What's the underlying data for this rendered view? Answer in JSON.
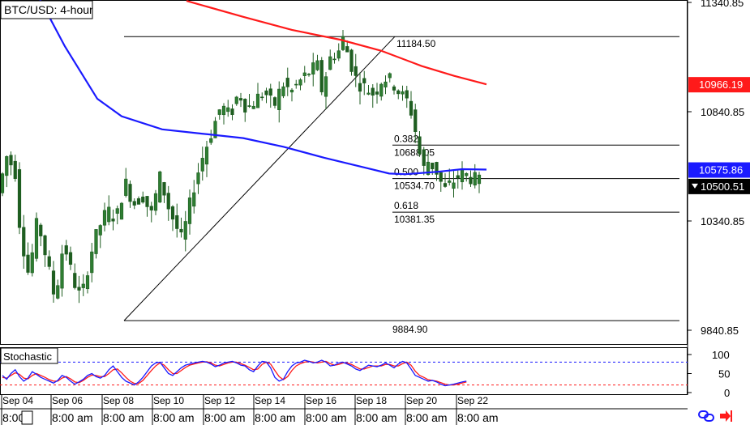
{
  "chart_title": "BTC/USD: 4-hour",
  "stochastic_label": "Stochastic",
  "colors": {
    "candle_up": "#2e7d32",
    "candle_down": "#1f5e21",
    "ma_fast": "#1a1aff",
    "ma_slow": "#ff1a1a",
    "fib": "#000000",
    "stoch_k": "#1a1aff",
    "stoch_d": "#ff1a1a",
    "axis_text": "#000000",
    "current_price_bg": "#000000"
  },
  "toolbar_icons": [
    "link-icon",
    "arrow-right-icon"
  ],
  "chart_data": {
    "type": "candlestick",
    "main_axis": {
      "ylim": [
        9780,
        11340.85
      ],
      "tick_labels": [
        "11340.85",
        "10840.85",
        "10340.85",
        "9840.85"
      ],
      "tick_values": [
        11340.85,
        10840.85,
        10340.85,
        9840.85
      ]
    },
    "price_tags": [
      {
        "label": "10966.19",
        "value": 10966.19,
        "color": "#ff1a1a",
        "kind": "ma_slow"
      },
      {
        "label": "10575.86",
        "value": 10575.86,
        "color": "#1a1aff",
        "kind": "ma_fast"
      },
      {
        "label": "10500.51",
        "value": 10500.51,
        "color": "#000000",
        "kind": "current"
      }
    ],
    "fibonacci": {
      "high": {
        "label": "11184.50",
        "value": 11184.5
      },
      "low": {
        "label": "9884.90",
        "value": 9884.9
      },
      "levels": [
        {
          "ratio": "0.382",
          "label": "10688.05",
          "value": 10688.05
        },
        {
          "ratio": "0.500",
          "label": "10534.70",
          "value": 10534.7
        },
        {
          "ratio": "0.618",
          "label": "10381.35",
          "value": 10381.35
        }
      ]
    },
    "x_date_labels": [
      "Sep 04",
      "Sep 06",
      "Sep 08",
      "Sep 10",
      "Sep 12",
      "Sep 14",
      "Sep 16",
      "Sep 18",
      "Sep 20",
      "Sep 22"
    ],
    "x_time_labels": [
      "8:00",
      "8:00 am",
      "8:00 am",
      "8:00 am",
      "8:00 am",
      "8:00 am",
      "8:00 am",
      "8:00 am",
      "8:00 am",
      "8:00 am"
    ],
    "stochastic": {
      "ylim": [
        0,
        100
      ],
      "tick_labels": [
        "100",
        "50",
        "0"
      ],
      "tick_values": [
        100,
        50,
        0
      ],
      "overbought": 80,
      "oversold": 20,
      "k": [
        45,
        35,
        50,
        60,
        42,
        30,
        38,
        55,
        48,
        40,
        35,
        30,
        25,
        32,
        45,
        40,
        30,
        22,
        28,
        35,
        45,
        50,
        42,
        38,
        45,
        60,
        70,
        55,
        40,
        30,
        25,
        20,
        28,
        40,
        55,
        70,
        78,
        80,
        65,
        50,
        45,
        55,
        65,
        72,
        75,
        78,
        80,
        82,
        80,
        75,
        68,
        72,
        78,
        80,
        82,
        78,
        72,
        70,
        60,
        55,
        70,
        82,
        80,
        65,
        40,
        30,
        35,
        55,
        70,
        78,
        80,
        85,
        82,
        78,
        80,
        85,
        80,
        70,
        72,
        78,
        80,
        75,
        70,
        62,
        58,
        65,
        72,
        70,
        68,
        72,
        78,
        72,
        65,
        75,
        82,
        78,
        62,
        45,
        40,
        35,
        30,
        32,
        28,
        22,
        18,
        20,
        22,
        25,
        28,
        30
      ],
      "d": [
        40,
        38,
        45,
        52,
        48,
        38,
        36,
        45,
        50,
        45,
        40,
        34,
        30,
        30,
        38,
        42,
        36,
        28,
        26,
        32,
        40,
        46,
        45,
        42,
        42,
        50,
        60,
        62,
        52,
        40,
        30,
        24,
        24,
        32,
        45,
        58,
        70,
        78,
        72,
        60,
        50,
        50,
        58,
        66,
        72,
        75,
        78,
        80,
        81,
        78,
        72,
        70,
        74,
        78,
        80,
        80,
        76,
        72,
        66,
        60,
        62,
        74,
        80,
        75,
        58,
        42,
        34,
        42,
        58,
        70,
        76,
        80,
        82,
        80,
        78,
        80,
        82,
        76,
        72,
        74,
        78,
        78,
        74,
        68,
        62,
        62,
        66,
        70,
        70,
        70,
        74,
        74,
        70,
        70,
        76,
        80,
        72,
        56,
        45,
        40,
        34,
        32,
        30,
        26,
        22,
        20,
        20,
        22,
        25,
        28
      ]
    }
  }
}
